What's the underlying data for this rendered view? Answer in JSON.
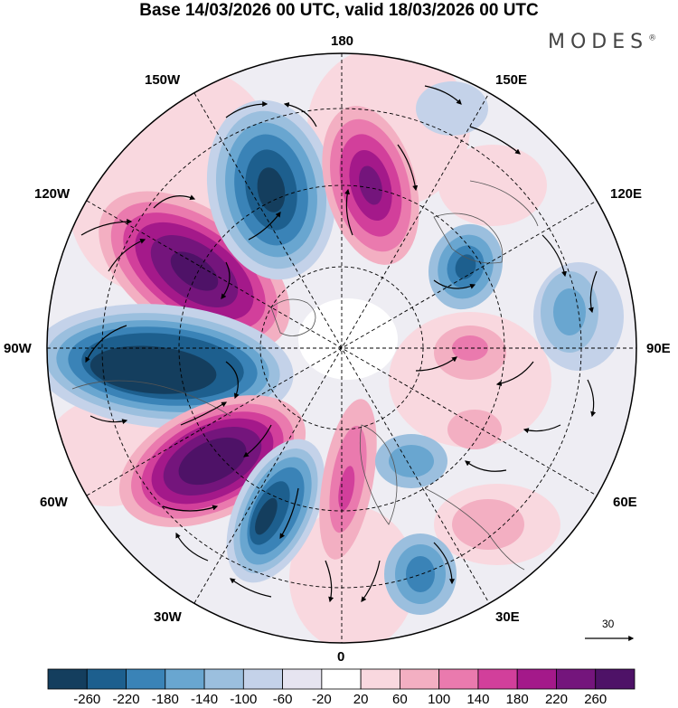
{
  "title": "Base 14/03/2026 00 UTC, valid 18/03/2026 00 UTC",
  "brand": "MODES",
  "brand_mark": "®",
  "longitude_labels": {
    "lon_180": "180",
    "lon_150W": "150W",
    "lon_150E": "150E",
    "lon_120W": "120W",
    "lon_120E": "120E",
    "lon_90W": "90W",
    "lon_90E": "90E",
    "lon_60W": "60W",
    "lon_60E": "60E",
    "lon_30W": "30W",
    "lon_30E": "30E",
    "lon_0": "0"
  },
  "reference_vector_label": "30",
  "colorbar": {
    "tick_labels": [
      "-260",
      "-220",
      "-180",
      "-140",
      "-100",
      "-60",
      "-20",
      "20",
      "60",
      "100",
      "140",
      "180",
      "220",
      "260"
    ],
    "colors": [
      "#143e5e",
      "#1d5f8e",
      "#3a83b7",
      "#69a6d0",
      "#9bbfde",
      "#c4d2e9",
      "#e6e4f0",
      "#ffffff",
      "#f9d8df",
      "#f3afc2",
      "#ea7aae",
      "#d23f9b",
      "#a4198a",
      "#74157c",
      "#4e1267"
    ]
  },
  "map_colors": {
    "pink_light": "#f9d8df",
    "pink_mid": "#f3afc2",
    "magenta": "#ea7aae",
    "magenta_dark": "#d23f9b",
    "purple": "#a4198a",
    "purple_dark": "#74157c",
    "purple_core": "#4e1267",
    "blue_light": "#c4d2e9",
    "blue_mid": "#9bbfde",
    "blue": "#69a6d0",
    "blue_dark": "#3a83b7",
    "navy": "#1d5f8e",
    "navy_core": "#143e5e",
    "lavender": "#e6e4f0"
  }
}
